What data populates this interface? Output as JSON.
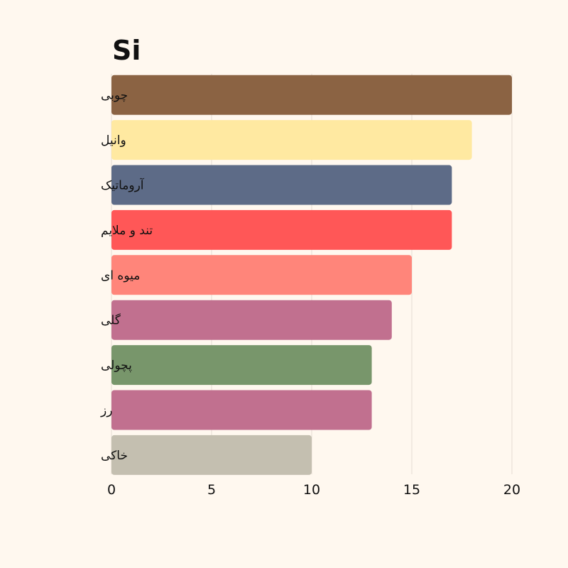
{
  "chart_data": {
    "type": "bar",
    "orientation": "horizontal",
    "title": "Si",
    "categories": [
      "چوبی",
      "وانیل",
      "آروماتیک",
      "تند و ملایم",
      "میوه ای",
      "گلی",
      "پچولی",
      "رز",
      "خاکی"
    ],
    "values": [
      20,
      18,
      17,
      17,
      15,
      14,
      13,
      13,
      10
    ],
    "colors": [
      "#8b6343",
      "#ffe9a1",
      "#5d6b87",
      "#ff5757",
      "#ff857a",
      "#c1708f",
      "#78966b",
      "#c1708f",
      "#c4bfb0"
    ],
    "xlabel": "",
    "ylabel": "",
    "xlim": [
      0,
      20
    ],
    "xticks": [
      0,
      5,
      10,
      15,
      20
    ],
    "grid": true
  }
}
